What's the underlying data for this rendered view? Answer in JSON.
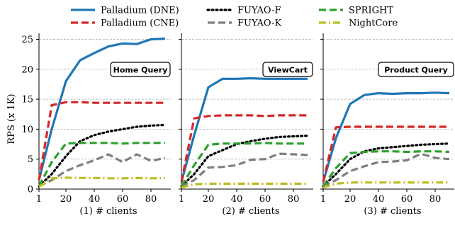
{
  "chart_data": {
    "type": "line",
    "ylabel": "RPS (x 1K)",
    "ylim": [
      0,
      26
    ],
    "yticks": [
      0,
      5,
      10,
      15,
      20,
      25
    ],
    "xlim": [
      1,
      94
    ],
    "xticks": [
      1,
      20,
      40,
      60,
      80
    ],
    "grid": "horizontal dashed",
    "legend_position": "top",
    "legend": [
      {
        "name": "Palladium (DNE)",
        "color": "#1f77b4",
        "style": "solid"
      },
      {
        "name": "Palladium (CNE)",
        "color": "#d62728",
        "style": "dashed"
      },
      {
        "name": "FUYAO-F",
        "color": "#000000",
        "style": "dotted"
      },
      {
        "name": "FUYAO-K",
        "color": "#7f7f7f",
        "style": "dashed"
      },
      {
        "name": "SPRIGHT",
        "color": "#2ca02c",
        "style": "dashed"
      },
      {
        "name": "NightCore",
        "color": "#bcbd22",
        "style": "dashdot"
      }
    ],
    "panels": [
      {
        "title": "Home Query",
        "xlabel": "(1) # clients",
        "x": [
          1,
          10,
          20,
          30,
          40,
          50,
          60,
          70,
          80,
          90
        ],
        "series": [
          {
            "name": "Palladium (DNE)",
            "values": [
              1.5,
              10,
              18,
              21.5,
              22.7,
              23.8,
              24.3,
              24.2,
              25,
              25.1
            ]
          },
          {
            "name": "Palladium (CNE)",
            "values": [
              1.5,
              14,
              14.5,
              14.5,
              14.4,
              14.4,
              14.4,
              14.4,
              14.4,
              14.4
            ]
          },
          {
            "name": "FUYAO-F",
            "values": [
              0.5,
              2.5,
              5.5,
              8,
              9,
              9.6,
              10,
              10.4,
              10.6,
              10.7
            ]
          },
          {
            "name": "FUYAO-K",
            "values": [
              0.5,
              1.5,
              3,
              4,
              4.8,
              5.8,
              4.5,
              5.8,
              4.7,
              5.2
            ]
          },
          {
            "name": "SPRIGHT",
            "values": [
              0.5,
              4.5,
              7.6,
              7.7,
              7.7,
              7.7,
              7.6,
              7.7,
              7.7,
              7.7
            ]
          },
          {
            "name": "NightCore",
            "values": [
              0.4,
              1.8,
              1.9,
              1.85,
              1.85,
              1.8,
              1.8,
              1.85,
              1.8,
              1.85
            ]
          }
        ]
      },
      {
        "title": "ViewCart",
        "xlabel": "(2) # clients",
        "x": [
          1,
          10,
          20,
          30,
          40,
          50,
          60,
          70,
          80,
          90
        ],
        "series": [
          {
            "name": "Palladium (DNE)",
            "values": [
              1.2,
              9,
              17,
              18.4,
              18.4,
              18.5,
              18.4,
              18.4,
              18.4,
              18.4
            ]
          },
          {
            "name": "Palladium (CNE)",
            "values": [
              1.2,
              11.8,
              12.2,
              12.3,
              12.3,
              12.3,
              12.2,
              12.3,
              12.3,
              12.3
            ]
          },
          {
            "name": "FUYAO-F",
            "values": [
              0.5,
              2.5,
              5.5,
              6.5,
              7.5,
              8,
              8.4,
              8.7,
              8.8,
              8.9
            ]
          },
          {
            "name": "FUYAO-K",
            "values": [
              0.5,
              1.5,
              3.6,
              3.7,
              4,
              4.9,
              5,
              5.9,
              5.8,
              5.7
            ]
          },
          {
            "name": "SPRIGHT",
            "values": [
              0.5,
              4,
              7.4,
              7.6,
              7.6,
              7.6,
              7.7,
              7.6,
              7.6,
              7.6
            ]
          },
          {
            "name": "NightCore",
            "values": [
              0.3,
              0.8,
              0.9,
              0.9,
              0.9,
              0.9,
              0.9,
              0.9,
              0.9,
              0.9
            ]
          }
        ]
      },
      {
        "title": "Product Query",
        "xlabel": "(3) # clients",
        "x": [
          1,
          10,
          20,
          30,
          40,
          50,
          60,
          70,
          80,
          90
        ],
        "series": [
          {
            "name": "Palladium (DNE)",
            "values": [
              1.2,
              8.5,
              14.2,
              15.7,
              16,
              15.9,
              16,
              16,
              16.1,
              16
            ]
          },
          {
            "name": "Palladium (CNE)",
            "values": [
              1.2,
              10.3,
              10.4,
              10.4,
              10.4,
              10.4,
              10.4,
              10.4,
              10.4,
              10.4
            ]
          },
          {
            "name": "FUYAO-F",
            "values": [
              0.5,
              2.5,
              5,
              6.3,
              6.8,
              7,
              7.2,
              7.4,
              7.5,
              7.6
            ]
          },
          {
            "name": "FUYAO-K",
            "values": [
              0.5,
              1.5,
              3,
              3.8,
              4.5,
              4.6,
              4.8,
              5.9,
              5.2,
              5
            ]
          },
          {
            "name": "SPRIGHT",
            "values": [
              0.5,
              3.5,
              6,
              6.2,
              6.3,
              6.3,
              6.2,
              6.3,
              6.3,
              6.2
            ]
          },
          {
            "name": "NightCore",
            "values": [
              0.3,
              0.9,
              1.1,
              1.1,
              1.1,
              1.1,
              1.1,
              1.1,
              1.1,
              1.1
            ]
          }
        ]
      }
    ]
  }
}
